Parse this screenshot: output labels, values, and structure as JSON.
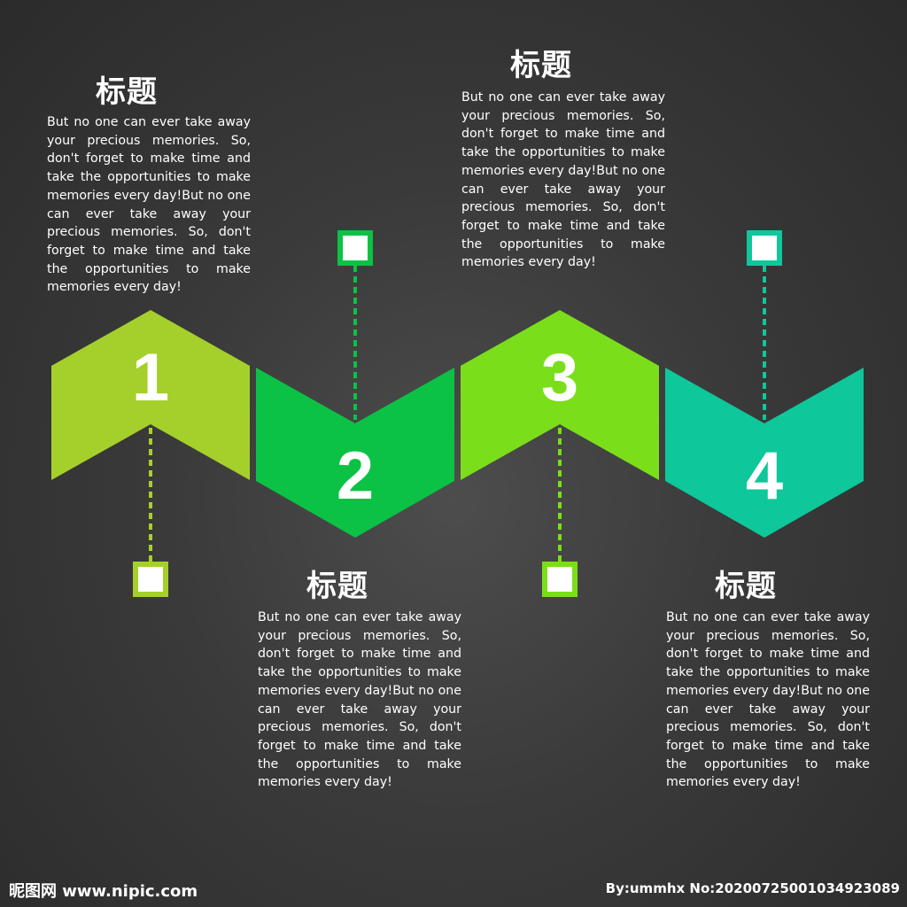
{
  "steps": [
    {
      "number": "1",
      "title": "标题",
      "text": "But no one can ever take away your precious memories. So, don't forget to make time and take the opportunities to make memories every day!But no one can ever take away your precious memories. So, don't forget to make time and take the opportunities to make memories every day!",
      "color": "#a5d02c"
    },
    {
      "number": "2",
      "title": "标题",
      "text": "But no one can ever take away your precious memories. So, don't forget to make time and take the opportunities to make memories every day!But no one can ever take away your precious memories. So, don't forget to make time and take the opportunities to make memories every day!",
      "color": "#0bc244"
    },
    {
      "number": "3",
      "title": "标题",
      "text": "But no one can ever take away your precious memories. So, don't forget to make time and take the opportunities to make memories every day!But no one can ever take away your precious memories. So, don't forget to make time and take the opportunities to make memories every day!",
      "color": "#7bde1a"
    },
    {
      "number": "4",
      "title": "标题",
      "text": "But no one can ever take away your precious memories. So, don't forget to make time and take the opportunities to make memories every day!But no one can ever take away your precious memories. So, don't forget to make time and take the opportunities to make memories every day!",
      "color": "#0ec79a"
    }
  ],
  "footer": {
    "watermark": "昵图网 www.nipic.com",
    "credit": "By:ummhx No:20200725001034923089"
  },
  "colors": {
    "background": "#3a3a3a",
    "text": "#ffffff"
  }
}
